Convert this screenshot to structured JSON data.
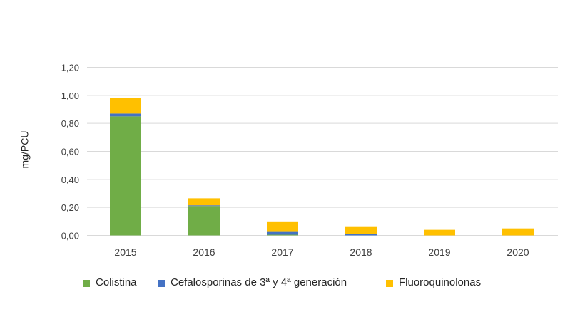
{
  "chart_data": {
    "type": "bar",
    "stacked": true,
    "title": "",
    "xlabel": "",
    "ylabel": "mg/PCU",
    "ylim": [
      0,
      1.2
    ],
    "yticks": [
      "0,00",
      "0,20",
      "0,40",
      "0,60",
      "0,80",
      "1,00",
      "1,20"
    ],
    "grid": true,
    "legend_position": "bottom",
    "categories": [
      "2015",
      "2016",
      "2017",
      "2018",
      "2019",
      "2020"
    ],
    "series": [
      {
        "name": "Colistina",
        "color": "#70AD47",
        "values": [
          0.85,
          0.21,
          0.005,
          0.0,
          0.0,
          0.0
        ]
      },
      {
        "name": "Cefalosporinas de 3ª y 4ª generación",
        "color": "#4472C4",
        "values": [
          0.02,
          0.005,
          0.02,
          0.01,
          0.0,
          0.0
        ]
      },
      {
        "name": "Fluoroquinolonas",
        "color": "#FFC000",
        "values": [
          0.11,
          0.05,
          0.07,
          0.05,
          0.04,
          0.05
        ]
      }
    ]
  },
  "legend": {
    "items": [
      {
        "label": "Colistina",
        "color": "#70AD47"
      },
      {
        "label": "Cefalosporinas de 3ª y 4ª generación",
        "color": "#4472C4"
      },
      {
        "label": "Fluoroquinolonas",
        "color": "#FFC000"
      }
    ]
  }
}
